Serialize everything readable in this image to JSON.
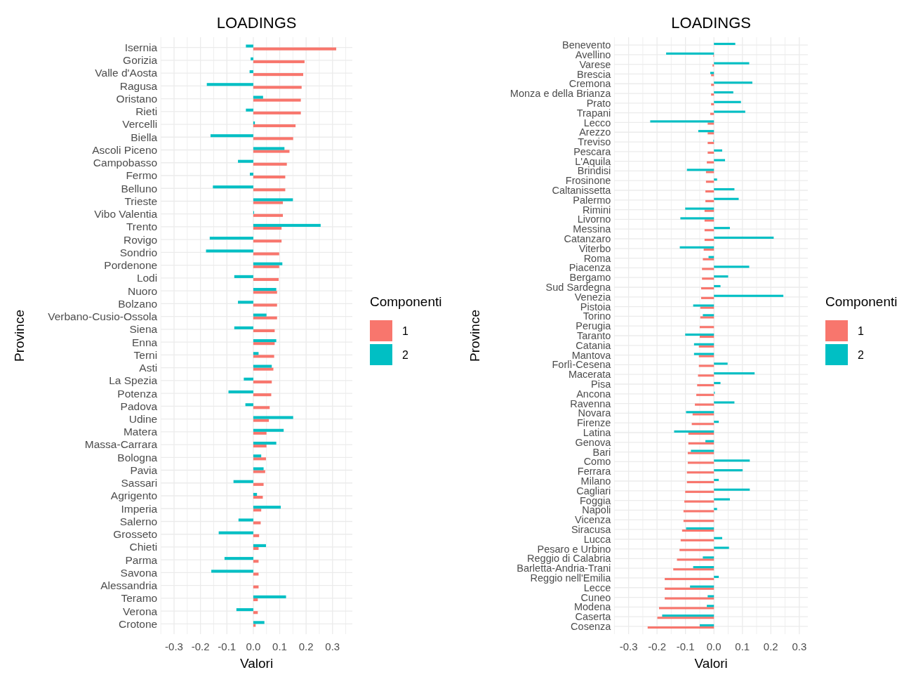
{
  "chart_data": [
    {
      "type": "bar",
      "orientation": "horizontal",
      "title": "LOADINGS",
      "xlabel": "Valori",
      "ylabel": "Province",
      "legend_title": "Componenti",
      "legend": "right",
      "grid": true,
      "categories": [
        "Isernia",
        "Gorizia",
        "Valle d'Aosta",
        "Ragusa",
        "Oristano",
        "Rieti",
        "Vercelli",
        "Biella",
        "Ascoli Piceno",
        "Campobasso",
        "Fermo",
        "Belluno",
        "Trieste",
        "Vibo Valentia",
        "Trento",
        "Rovigo",
        "Sondrio",
        "Pordenone",
        "Lodi",
        "Nuoro",
        "Bolzano",
        "Verbano-Cusio-Ossola",
        "Siena",
        "Enna",
        "Terni",
        "Asti",
        "La Spezia",
        "Potenza",
        "Padova",
        "Udine",
        "Matera",
        "Massa-Carrara",
        "Bologna",
        "Pavia",
        "Sassari",
        "Agrigento",
        "Imperia",
        "Salerno",
        "Grosseto",
        "Chieti",
        "Parma",
        "Savona",
        "Alessandria",
        "Teramo",
        "Verona",
        "Crotone"
      ],
      "series": [
        {
          "name": "1",
          "color": "#f8766d",
          "values": [
            0.314,
            0.194,
            0.189,
            0.183,
            0.18,
            0.18,
            0.16,
            0.151,
            0.137,
            0.127,
            0.121,
            0.121,
            0.112,
            0.112,
            0.107,
            0.107,
            0.098,
            0.098,
            0.096,
            0.09,
            0.09,
            0.09,
            0.081,
            0.081,
            0.079,
            0.076,
            0.07,
            0.068,
            0.062,
            0.059,
            0.05,
            0.05,
            0.048,
            0.045,
            0.039,
            0.036,
            0.03,
            0.028,
            0.022,
            0.02,
            0.02,
            0.02,
            0.02,
            0.017,
            0.017,
            0.009
          ]
        },
        {
          "name": "2",
          "color": "#00bfc4",
          "values": [
            -0.028,
            -0.01,
            -0.014,
            -0.176,
            0.037,
            -0.028,
            0.006,
            -0.162,
            0.118,
            -0.058,
            -0.013,
            -0.153,
            0.15,
            0.003,
            0.255,
            -0.165,
            -0.179,
            0.11,
            -0.072,
            0.087,
            -0.058,
            0.05,
            -0.072,
            0.087,
            0.02,
            0.07,
            -0.036,
            -0.094,
            -0.03,
            0.151,
            0.115,
            0.087,
            0.03,
            0.039,
            -0.075,
            0.014,
            0.104,
            -0.056,
            -0.131,
            0.048,
            -0.109,
            -0.159,
            0,
            0.124,
            -0.064,
            0.042
          ]
        }
      ],
      "xlim": [
        -0.35,
        0.375
      ],
      "xticks": [
        {
          "value": -0.35,
          "label": null
        },
        {
          "value": -0.3,
          "label": "-0.3"
        },
        {
          "value": -0.25,
          "label": null
        },
        {
          "value": -0.2,
          "label": "-0.2"
        },
        {
          "value": -0.15,
          "label": null
        },
        {
          "value": -0.1,
          "label": "-0.1"
        },
        {
          "value": -0.05,
          "label": null
        },
        {
          "value": 0,
          "label": "0.0"
        },
        {
          "value": 0.05,
          "label": null
        },
        {
          "value": 0.1,
          "label": "0.1"
        },
        {
          "value": 0.15,
          "label": null
        },
        {
          "value": 0.2,
          "label": "0.2"
        },
        {
          "value": 0.25,
          "label": null
        },
        {
          "value": 0.3,
          "label": "0.3"
        },
        {
          "value": 0.35,
          "label": null
        }
      ]
    },
    {
      "type": "bar",
      "orientation": "horizontal",
      "title": "LOADINGS",
      "xlabel": "Valori",
      "ylabel": "Province",
      "legend_title": "Componenti",
      "legend": "right",
      "grid": true,
      "categories": [
        "Benevento",
        "Avellino",
        "Varese",
        "Brescia",
        "Cremona",
        "Monza e della Brianza",
        "Prato",
        "Trapani",
        "Lecco",
        "Arezzo",
        "Treviso",
        "Pescara",
        "L'Aquila",
        "Brindisi",
        "Frosinone",
        "Caltanissetta",
        "Palermo",
        "Rimini",
        "Livorno",
        "Messina",
        "Catanzaro",
        "Viterbo",
        "Roma",
        "Piacenza",
        "Bergamo",
        "Sud Sardegna",
        "Venezia",
        "Pistoia",
        "Torino",
        "Perugia",
        "Taranto",
        "Catania",
        "Mantova",
        "Forlì-Cesena",
        "Macerata",
        "Pisa",
        "Ancona",
        "Ravenna",
        "Novara",
        "Firenze",
        "Latina",
        "Genova",
        "Bari",
        "Como",
        "Ferrara",
        "Milano",
        "Cagliari",
        "Foggia",
        "Napoli",
        "Vicenza",
        "Siracusa",
        "Lucca",
        "Pesaro e Urbino",
        "Reggio di Calabria",
        "Barletta-Andria-Trani",
        "Reggio nell'Emilia",
        "Lecce",
        "Cuneo",
        "Modena",
        "Caserta",
        "Cosenza"
      ],
      "series": [
        {
          "name": "1",
          "color": "#f8766d",
          "values": [
            0,
            -0.002,
            -0.005,
            -0.01,
            -0.01,
            -0.01,
            -0.01,
            -0.013,
            -0.022,
            -0.022,
            -0.022,
            -0.022,
            -0.025,
            -0.028,
            -0.028,
            -0.03,
            -0.03,
            -0.033,
            -0.033,
            -0.033,
            -0.033,
            -0.036,
            -0.039,
            -0.042,
            -0.042,
            -0.045,
            -0.045,
            -0.048,
            -0.048,
            -0.05,
            -0.05,
            -0.053,
            -0.053,
            -0.053,
            -0.056,
            -0.059,
            -0.062,
            -0.067,
            -0.075,
            -0.078,
            -0.09,
            -0.09,
            -0.092,
            -0.092,
            -0.095,
            -0.095,
            -0.101,
            -0.104,
            -0.107,
            -0.107,
            -0.112,
            -0.117,
            -0.121,
            -0.13,
            -0.143,
            -0.173,
            -0.173,
            -0.173,
            -0.193,
            -0.199,
            -0.233
          ]
        },
        {
          "name": "2",
          "color": "#00bfc4",
          "values": [
            0.075,
            -0.168,
            0.124,
            -0.013,
            0.135,
            0.068,
            0.095,
            0.11,
            -0.224,
            -0.055,
            -0.002,
            0.029,
            0.039,
            -0.095,
            0.011,
            0.072,
            0.087,
            -0.101,
            -0.118,
            0.056,
            0.21,
            -0.12,
            -0.019,
            0.124,
            0.05,
            0.023,
            0.244,
            -0.073,
            -0.039,
            0,
            -0.101,
            -0.07,
            -0.07,
            0.048,
            0.143,
            0.023,
            0.003,
            0.072,
            -0.098,
            0.017,
            -0.14,
            -0.03,
            -0.081,
            0.126,
            0.101,
            0.017,
            0.126,
            0.056,
            0.011,
            0,
            -0.098,
            0.029,
            0.053,
            -0.039,
            -0.073,
            0.017,
            -0.084,
            -0.022,
            -0.025,
            -0.182,
            -0.05
          ]
        }
      ],
      "xlim": [
        -0.35,
        0.33
      ],
      "xticks": [
        {
          "value": -0.35,
          "label": null
        },
        {
          "value": -0.3,
          "label": "-0.3"
        },
        {
          "value": -0.25,
          "label": null
        },
        {
          "value": -0.2,
          "label": "-0.2"
        },
        {
          "value": -0.15,
          "label": null
        },
        {
          "value": -0.1,
          "label": "-0.1"
        },
        {
          "value": -0.05,
          "label": null
        },
        {
          "value": 0,
          "label": "0.0"
        },
        {
          "value": 0.05,
          "label": null
        },
        {
          "value": 0.1,
          "label": "0.1"
        },
        {
          "value": 0.15,
          "label": null
        },
        {
          "value": 0.2,
          "label": "0.2"
        },
        {
          "value": 0.25,
          "label": null
        },
        {
          "value": 0.3,
          "label": "0.3"
        }
      ]
    }
  ]
}
